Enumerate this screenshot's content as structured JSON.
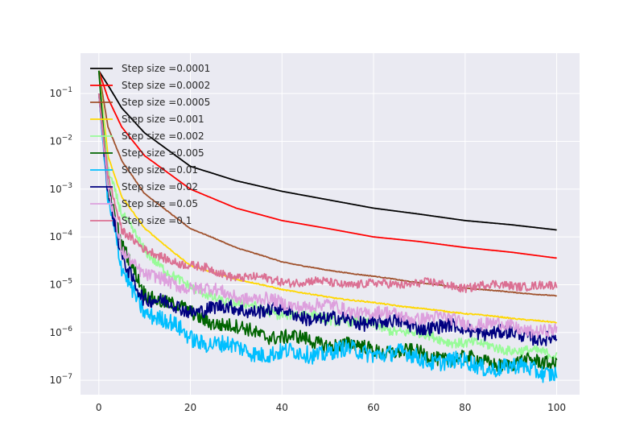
{
  "chart_data": {
    "type": "line",
    "title": "",
    "xlabel": "",
    "ylabel": "",
    "xlim": [
      -4,
      105
    ],
    "ylim": [
      5e-08,
      0.7
    ],
    "yscale": "log",
    "grid": true,
    "legend_position": "top-left",
    "x_ticks": [
      0,
      20,
      40,
      60,
      80,
      100
    ],
    "x_tick_labels": [
      "0",
      "20",
      "40",
      "60",
      "80",
      "100"
    ],
    "y_ticks": [
      1e-07,
      1e-06,
      1e-05,
      0.0001,
      0.001,
      0.01,
      0.1
    ],
    "y_tick_labels": [
      {
        "base": "10",
        "exp": "−7"
      },
      {
        "base": "10",
        "exp": "−6"
      },
      {
        "base": "10",
        "exp": "−5"
      },
      {
        "base": "10",
        "exp": "−4"
      },
      {
        "base": "10",
        "exp": "−3"
      },
      {
        "base": "10",
        "exp": "−2"
      },
      {
        "base": "10",
        "exp": "−1"
      }
    ],
    "series": [
      {
        "name": "Step size =0.0001",
        "color": "#000000",
        "x": [
          0,
          2,
          5,
          10,
          20,
          30,
          40,
          50,
          60,
          70,
          80,
          90,
          100
        ],
        "y": [
          0.3,
          0.15,
          0.05,
          0.015,
          0.003,
          0.0015,
          0.0009,
          0.0006,
          0.0004,
          0.0003,
          0.00022,
          0.00018,
          0.00014
        ]
      },
      {
        "name": "Step size =0.0002",
        "color": "#ff0000",
        "x": [
          0,
          2,
          5,
          10,
          20,
          30,
          40,
          50,
          60,
          70,
          80,
          90,
          100
        ],
        "y": [
          0.3,
          0.08,
          0.02,
          0.005,
          0.001,
          0.0004,
          0.00022,
          0.00015,
          0.0001,
          8e-05,
          6e-05,
          4.8e-05,
          3.6e-05
        ]
      },
      {
        "name": "Step size =0.0005",
        "color": "#a0522d",
        "x": [
          0,
          2,
          5,
          10,
          20,
          30,
          40,
          50,
          60,
          70,
          80,
          90,
          100
        ],
        "y": [
          0.3,
          0.02,
          0.004,
          0.0008,
          0.00015,
          6e-05,
          3e-05,
          2e-05,
          1.5e-05,
          1.1e-05,
          8.5e-06,
          7e-06,
          5.8e-06
        ]
      },
      {
        "name": "Step size =0.001",
        "color": "#ffd700",
        "x": [
          0,
          2,
          5,
          10,
          20,
          30,
          40,
          50,
          60,
          70,
          80,
          90,
          100
        ],
        "y": [
          0.3,
          0.005,
          0.0007,
          0.00015,
          2.5e-05,
          1.3e-05,
          8e-06,
          5.5e-06,
          4.2e-06,
          3.2e-06,
          2.5e-06,
          2e-06,
          1.6e-06
        ]
      },
      {
        "name": "Step size =0.002",
        "color": "#98fb98",
        "x": [
          0,
          2,
          5,
          10,
          20,
          30,
          40,
          50,
          60,
          70,
          80,
          90,
          100
        ],
        "y": [
          0.3,
          0.003,
          0.0003,
          5e-05,
          8e-06,
          4e-06,
          2.5e-06,
          2e-06,
          1.4e-06,
          9e-07,
          6e-07,
          4.5e-07,
          3.3e-07
        ]
      },
      {
        "name": "Step size =0.005",
        "color": "#006400",
        "x": [
          0,
          2,
          5,
          10,
          20,
          30,
          40,
          50,
          60,
          70,
          80,
          90,
          100
        ],
        "y": [
          0.3,
          0.001,
          6e-05,
          7e-06,
          2.5e-06,
          1.2e-06,
          8e-07,
          6e-07,
          4.5e-07,
          3.5e-07,
          2.7e-07,
          2.2e-07,
          2.5e-07
        ]
      },
      {
        "name": "Step size =0.01",
        "color": "#00bfff",
        "x": [
          0,
          2,
          5,
          10,
          20,
          30,
          40,
          50,
          60,
          70,
          80,
          90,
          100
        ],
        "y": [
          0.1,
          0.0005,
          2e-05,
          3e-06,
          8e-07,
          4.5e-07,
          3.5e-07,
          4e-07,
          4e-07,
          3e-07,
          2.2e-07,
          1.8e-07,
          1.5e-07
        ]
      },
      {
        "name": "Step size =0.02",
        "color": "#000080",
        "x": [
          0,
          2,
          5,
          10,
          20,
          30,
          40,
          50,
          60,
          70,
          80,
          90,
          100
        ],
        "y": [
          0.1,
          0.0008,
          4e-05,
          5e-06,
          3e-06,
          3.2e-06,
          2.8e-06,
          1.8e-06,
          1.7e-06,
          1.4e-06,
          1.2e-06,
          9e-07,
          8e-07
        ]
      },
      {
        "name": "Step size =0.05",
        "color": "#dda0dd",
        "x": [
          0,
          2,
          5,
          10,
          20,
          30,
          40,
          50,
          60,
          70,
          80,
          90,
          100
        ],
        "y": [
          0.1,
          0.001,
          6e-05,
          1.5e-05,
          9e-06,
          6e-06,
          4e-06,
          3.5e-06,
          2.5e-06,
          2.1e-06,
          1.7e-06,
          1.3e-06,
          1e-06
        ]
      },
      {
        "name": "Step size =0.1",
        "color": "#db7093",
        "x": [
          0,
          2,
          5,
          10,
          20,
          30,
          40,
          50,
          60,
          70,
          80,
          90,
          100
        ],
        "y": [
          0.1,
          0.002,
          0.00015,
          5e-05,
          2.5e-05,
          1.5e-05,
          1.2e-05,
          1.1e-05,
          1e-05,
          1.1e-05,
          9e-06,
          1e-05,
          9e-06
        ]
      }
    ]
  }
}
